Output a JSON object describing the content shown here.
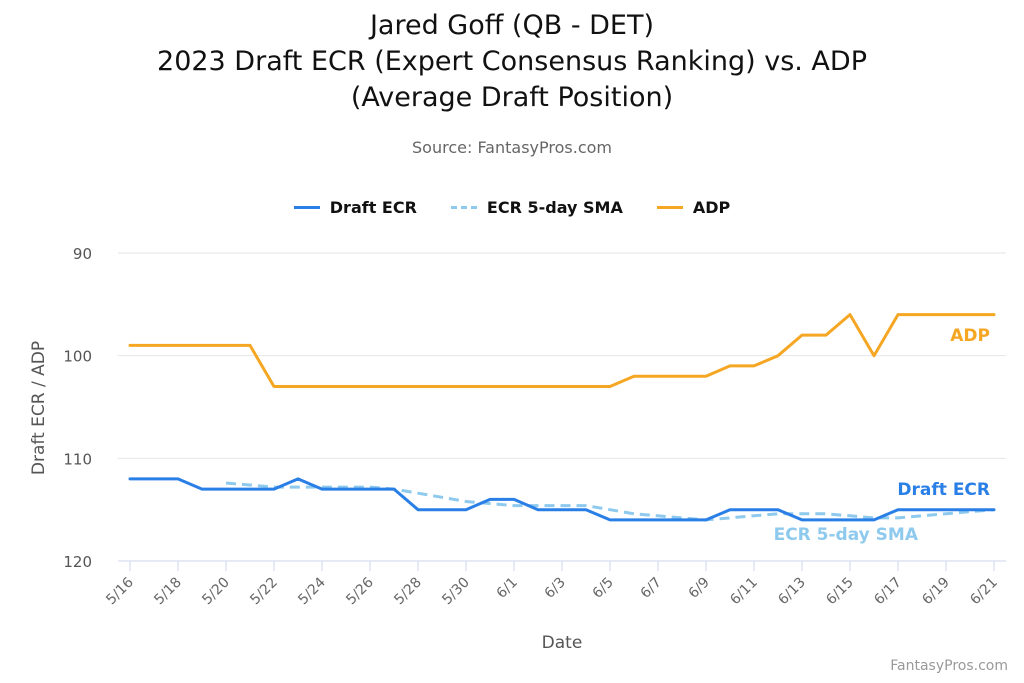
{
  "chart_data": {
    "type": "line",
    "title_lines": [
      "Jared Goff (QB - DET)",
      "2023 Draft ECR (Expert Consensus Ranking) vs. ADP",
      "(Average Draft Position)"
    ],
    "subtitle": "Source: FantasyPros.com",
    "xlabel": "Date",
    "ylabel": "Draft ECR / ADP",
    "y_reversed": true,
    "ylim": [
      90,
      120
    ],
    "yticks": [
      90,
      100,
      110,
      120
    ],
    "grid": true,
    "legend_position": "top-center",
    "credit": "FantasyPros.com",
    "x": [
      "5/16",
      "5/17",
      "5/18",
      "5/19",
      "5/20",
      "5/21",
      "5/22",
      "5/23",
      "5/24",
      "5/25",
      "5/26",
      "5/27",
      "5/28",
      "5/29",
      "5/30",
      "5/31",
      "6/1",
      "6/2",
      "6/3",
      "6/4",
      "6/5",
      "6/6",
      "6/7",
      "6/8",
      "6/9",
      "6/10",
      "6/11",
      "6/12",
      "6/13",
      "6/14",
      "6/15",
      "6/16",
      "6/17",
      "6/18",
      "6/19",
      "6/20",
      "6/21"
    ],
    "xtick_labels": [
      "5/16",
      "5/18",
      "5/20",
      "5/22",
      "5/24",
      "5/26",
      "5/28",
      "5/30",
      "6/1",
      "6/3",
      "6/5",
      "6/7",
      "6/9",
      "6/11",
      "6/13",
      "6/15",
      "6/17",
      "6/19",
      "6/21"
    ],
    "series": [
      {
        "name": "Draft ECR",
        "color": "#2a7fe6",
        "style": "solid",
        "end_label": "Draft ECR",
        "values": [
          112,
          112,
          112,
          113,
          113,
          113,
          113,
          112,
          113,
          113,
          113,
          113,
          115,
          115,
          115,
          114,
          114,
          115,
          115,
          115,
          116,
          116,
          116,
          116,
          116,
          115,
          115,
          115,
          116,
          116,
          116,
          116,
          115,
          115,
          115,
          115,
          115
        ]
      },
      {
        "name": "ECR 5-day SMA",
        "color": "#8ec9ee",
        "style": "dashed",
        "end_label": "ECR 5-day SMA",
        "values": [
          null,
          null,
          null,
          null,
          112.4,
          112.6,
          112.8,
          112.8,
          112.8,
          112.8,
          112.8,
          113.0,
          113.4,
          113.8,
          114.2,
          114.4,
          114.6,
          114.6,
          114.6,
          114.6,
          115.0,
          115.4,
          115.6,
          115.8,
          116.0,
          115.8,
          115.6,
          115.4,
          115.4,
          115.4,
          115.6,
          115.8,
          115.8,
          115.6,
          115.4,
          115.2,
          115.0
        ]
      },
      {
        "name": "ADP",
        "color": "#f5a623",
        "style": "solid",
        "end_label": "ADP",
        "values": [
          99,
          99,
          99,
          99,
          99,
          99,
          103,
          103,
          103,
          103,
          103,
          103,
          103,
          103,
          103,
          103,
          103,
          103,
          103,
          103,
          103,
          102,
          102,
          102,
          102,
          101,
          101,
          100,
          98,
          98,
          96,
          100,
          96,
          96,
          96,
          96,
          96
        ]
      }
    ]
  }
}
